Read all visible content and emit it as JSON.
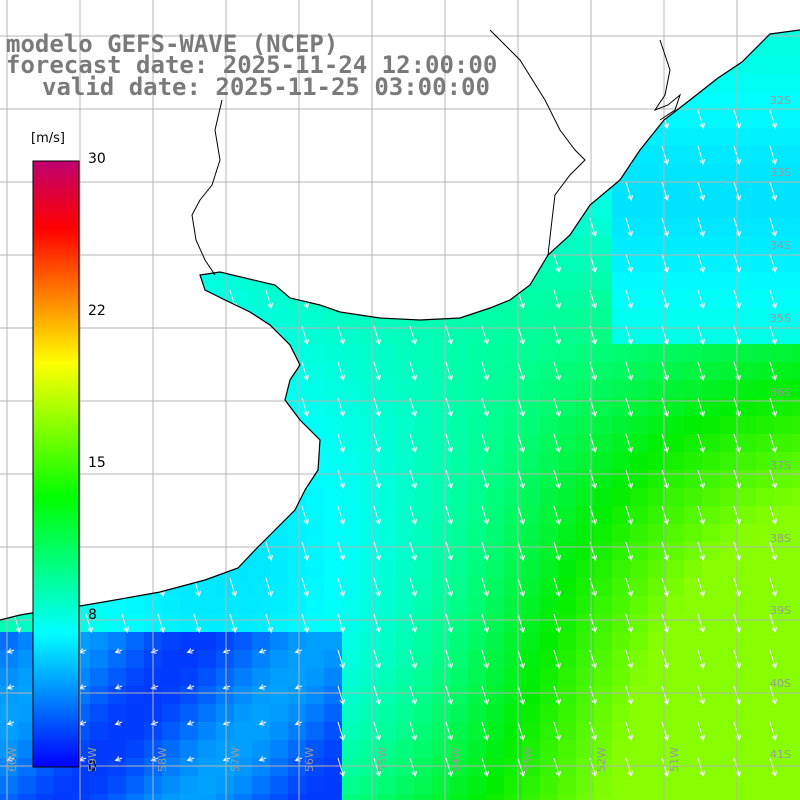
{
  "title": {
    "line1": "modelo GEFS-WAVE (NCEP)",
    "line2": "forecast date: 2025-11-24 12:00:00",
    "line3": "valid date: 2025-11-25 03:00:00"
  },
  "colorbar": {
    "unit": "[m/s]",
    "ticks": [
      {
        "label": "30",
        "value": 30
      },
      {
        "label": "22",
        "value": 22
      },
      {
        "label": "15",
        "value": 15
      },
      {
        "label": "8",
        "value": 8
      },
      {
        "label": "0",
        "value": 0
      }
    ],
    "colors": [
      "#0000ff",
      "#0080ff",
      "#00ffff",
      "#00ff80",
      "#00ff00",
      "#80ff00",
      "#ffff00",
      "#ff8000",
      "#ff0000",
      "#c00070"
    ]
  },
  "grid": {
    "lat_labels": [
      "32S",
      "33S",
      "34S",
      "35S",
      "36S",
      "37S",
      "38S",
      "39S",
      "40S",
      "41S"
    ],
    "lon_labels": [
      "60W",
      "59W",
      "58W",
      "57W",
      "56W",
      "55W",
      "54W",
      "53W",
      "52W",
      "51W"
    ]
  },
  "map": {
    "land_color": "#ffffff",
    "coast_color": "#000000",
    "grid_color": "#b4b4b4",
    "arrow_color": "#ffffff"
  }
}
